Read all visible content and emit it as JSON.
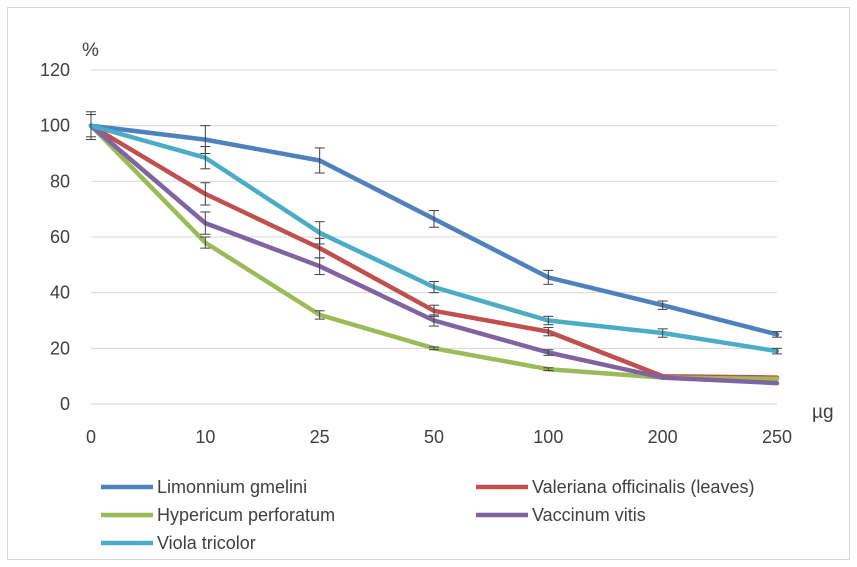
{
  "chart_data": {
    "type": "line",
    "title": "",
    "ylabel": "%",
    "xlabel": "µg",
    "categories": [
      "0",
      "10",
      "25",
      "50",
      "100",
      "200",
      "250"
    ],
    "ylim": [
      0,
      120
    ],
    "yticks": [
      0,
      20,
      40,
      60,
      80,
      100,
      120
    ],
    "grid": true,
    "legend_position": "bottom",
    "series": [
      {
        "name": "Limonnium gmelini",
        "color": "#4f81bd",
        "values": [
          100,
          95,
          87.5,
          66.5,
          45.5,
          35.5,
          25
        ],
        "errors": [
          5,
          5,
          4.5,
          3,
          2.5,
          1.5,
          1
        ]
      },
      {
        "name": "Valeriana officinalis (leaves)",
        "color": "#c0504d",
        "values": [
          100,
          75.5,
          56,
          33.5,
          26,
          10,
          9.5
        ],
        "errors": [
          0,
          4,
          3.5,
          2,
          1.5,
          0,
          0
        ]
      },
      {
        "name": "Hypericum perforatum",
        "color": "#9bbb59",
        "values": [
          100,
          58,
          32,
          20,
          12.5,
          9.5,
          9
        ],
        "errors": [
          0,
          2,
          1.5,
          0.5,
          0.5,
          0,
          0
        ]
      },
      {
        "name": "Vaccinum vitis",
        "color": "#8064a2",
        "values": [
          100,
          65,
          49.5,
          30,
          18.5,
          9.5,
          7.5
        ],
        "errors": [
          4,
          4,
          3,
          2,
          1,
          0,
          0
        ]
      },
      {
        "name": "Viola tricolor",
        "color": "#4bacc6",
        "values": [
          100,
          88.5,
          61.5,
          42,
          30,
          25.5,
          19
        ],
        "errors": [
          0,
          4,
          4,
          2,
          1.5,
          1.5,
          1
        ]
      }
    ]
  }
}
